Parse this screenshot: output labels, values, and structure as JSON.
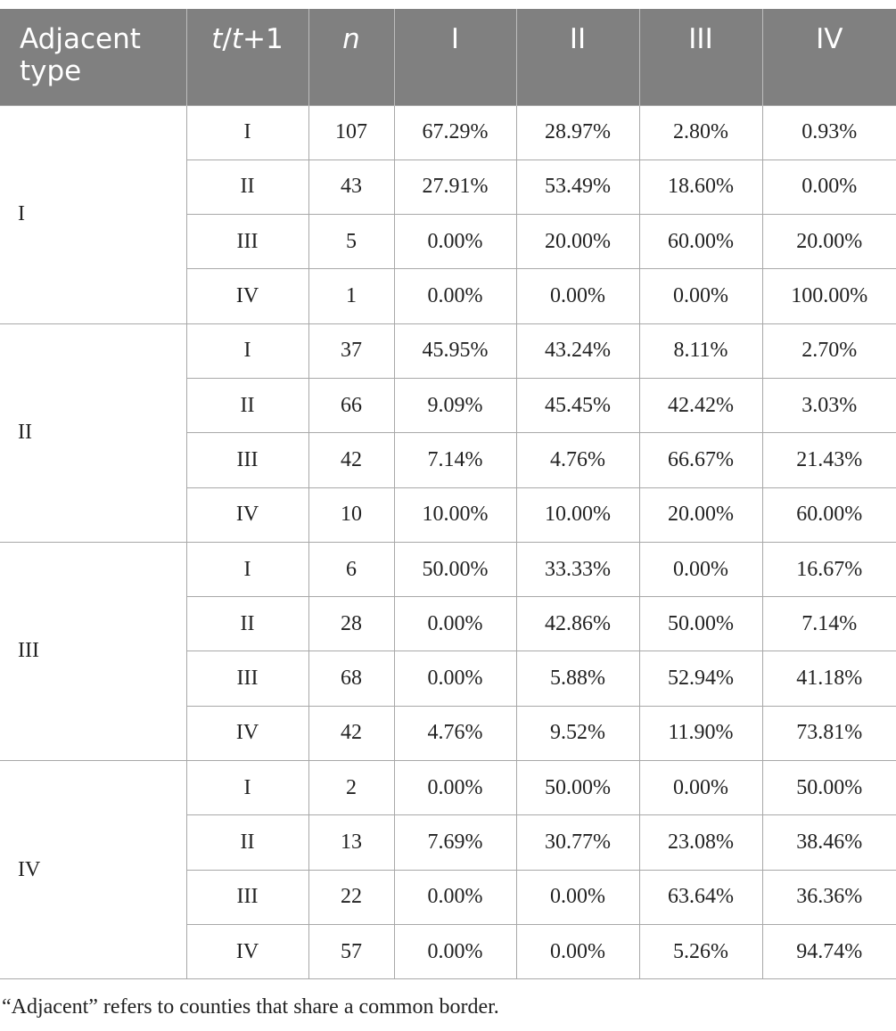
{
  "table": {
    "header": {
      "adjacent_line1": "Adjacent",
      "adjacent_line2": "type",
      "t": "t",
      "slash": "/",
      "t2": "t",
      "plus1": "+1",
      "n": "n",
      "cols": [
        "I",
        "II",
        "III",
        "IV"
      ]
    },
    "groups": [
      {
        "label": "I",
        "rows": [
          {
            "t": "I",
            "n": "107",
            "vals": [
              "67.29%",
              "28.97%",
              "2.80%",
              "0.93%"
            ]
          },
          {
            "t": "II",
            "n": "43",
            "vals": [
              "27.91%",
              "53.49%",
              "18.60%",
              "0.00%"
            ]
          },
          {
            "t": "III",
            "n": "5",
            "vals": [
              "0.00%",
              "20.00%",
              "60.00%",
              "20.00%"
            ]
          },
          {
            "t": "IV",
            "n": "1",
            "vals": [
              "0.00%",
              "0.00%",
              "0.00%",
              "100.00%"
            ]
          }
        ]
      },
      {
        "label": "II",
        "rows": [
          {
            "t": "I",
            "n": "37",
            "vals": [
              "45.95%",
              "43.24%",
              "8.11%",
              "2.70%"
            ]
          },
          {
            "t": "II",
            "n": "66",
            "vals": [
              "9.09%",
              "45.45%",
              "42.42%",
              "3.03%"
            ]
          },
          {
            "t": "III",
            "n": "42",
            "vals": [
              "7.14%",
              "4.76%",
              "66.67%",
              "21.43%"
            ]
          },
          {
            "t": "IV",
            "n": "10",
            "vals": [
              "10.00%",
              "10.00%",
              "20.00%",
              "60.00%"
            ]
          }
        ]
      },
      {
        "label": "III",
        "rows": [
          {
            "t": "I",
            "n": "6",
            "vals": [
              "50.00%",
              "33.33%",
              "0.00%",
              "16.67%"
            ]
          },
          {
            "t": "II",
            "n": "28",
            "vals": [
              "0.00%",
              "42.86%",
              "50.00%",
              "7.14%"
            ]
          },
          {
            "t": "III",
            "n": "68",
            "vals": [
              "0.00%",
              "5.88%",
              "52.94%",
              "41.18%"
            ]
          },
          {
            "t": "IV",
            "n": "42",
            "vals": [
              "4.76%",
              "9.52%",
              "11.90%",
              "73.81%"
            ]
          }
        ]
      },
      {
        "label": "IV",
        "rows": [
          {
            "t": "I",
            "n": "2",
            "vals": [
              "0.00%",
              "50.00%",
              "0.00%",
              "50.00%"
            ]
          },
          {
            "t": "II",
            "n": "13",
            "vals": [
              "7.69%",
              "30.77%",
              "23.08%",
              "38.46%"
            ]
          },
          {
            "t": "III",
            "n": "22",
            "vals": [
              "0.00%",
              "0.00%",
              "63.64%",
              "36.36%"
            ]
          },
          {
            "t": "IV",
            "n": "57",
            "vals": [
              "0.00%",
              "0.00%",
              "5.26%",
              "94.74%"
            ]
          }
        ]
      }
    ]
  },
  "footnote": "“Adjacent” refers to counties that share a common border."
}
